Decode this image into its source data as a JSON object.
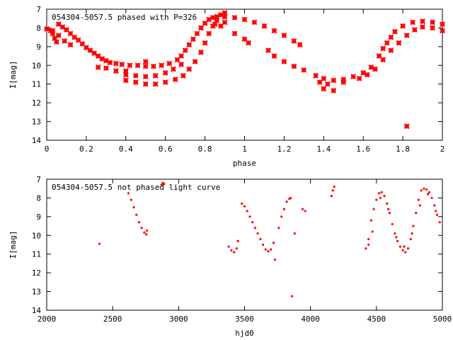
{
  "chart_data": [
    {
      "type": "scatter",
      "title": "054304-5057.5 phased with P=326",
      "xlabel": "phase",
      "ylabel": "I[mag]",
      "xlim": [
        0,
        2
      ],
      "ylim": [
        7,
        14
      ],
      "y_inverted": true,
      "x_ticks": [
        "0",
        "0.2",
        "0.4",
        "0.6",
        "0.8",
        "1",
        "1.2",
        "1.4",
        "1.6",
        "1.8",
        "2"
      ],
      "y_ticks": [
        "7",
        "8",
        "9",
        "10",
        "11",
        "12",
        "13",
        "14"
      ],
      "grid": false,
      "marker": "cross",
      "color": "#ff0000",
      "series": [
        {
          "points": [
            [
              0.0,
              8.05
            ],
            [
              0.02,
              8.15
            ],
            [
              0.03,
              8.3
            ],
            [
              0.04,
              8.55
            ],
            [
              0.05,
              8.75
            ],
            [
              0.06,
              7.8
            ],
            [
              0.08,
              7.95
            ],
            [
              0.1,
              8.1
            ],
            [
              0.12,
              8.3
            ],
            [
              0.14,
              8.5
            ],
            [
              0.16,
              8.65
            ],
            [
              0.18,
              8.85
            ],
            [
              0.2,
              9.05
            ],
            [
              0.22,
              9.2
            ],
            [
              0.24,
              9.35
            ],
            [
              0.26,
              9.5
            ],
            [
              0.28,
              9.65
            ],
            [
              0.3,
              9.75
            ],
            [
              0.32,
              9.85
            ],
            [
              0.35,
              9.9
            ],
            [
              0.38,
              9.95
            ],
            [
              0.42,
              10.0
            ],
            [
              0.46,
              10.0
            ],
            [
              0.5,
              10.05
            ],
            [
              0.54,
              10.05
            ],
            [
              0.58,
              10.0
            ],
            [
              0.62,
              9.9
            ],
            [
              0.66,
              9.7
            ],
            [
              0.68,
              9.5
            ],
            [
              0.7,
              9.2
            ],
            [
              0.72,
              8.9
            ],
            [
              0.74,
              8.6
            ],
            [
              0.76,
              8.3
            ],
            [
              0.78,
              8.0
            ],
            [
              0.8,
              7.75
            ],
            [
              0.82,
              7.55
            ],
            [
              0.84,
              7.45
            ],
            [
              0.86,
              7.4
            ],
            [
              0.9,
              7.4
            ],
            [
              0.95,
              7.45
            ],
            [
              1.0,
              7.55
            ],
            [
              1.05,
              7.7
            ],
            [
              1.1,
              7.9
            ],
            [
              1.15,
              8.15
            ],
            [
              1.2,
              8.4
            ],
            [
              1.25,
              8.7
            ],
            [
              1.28,
              8.9
            ],
            [
              0.03,
              8.15
            ],
            [
              0.06,
              8.4
            ],
            [
              0.09,
              8.7
            ],
            [
              0.12,
              8.9
            ],
            [
              0.26,
              10.1
            ],
            [
              0.3,
              10.15
            ],
            [
              0.35,
              10.3
            ],
            [
              0.4,
              10.5
            ],
            [
              0.45,
              10.55
            ],
            [
              0.5,
              10.6
            ],
            [
              0.55,
              10.55
            ],
            [
              0.6,
              10.4
            ],
            [
              0.64,
              10.2
            ],
            [
              0.68,
              9.95
            ],
            [
              0.4,
              10.8
            ],
            [
              0.45,
              10.9
            ],
            [
              0.5,
              11.0
            ],
            [
              0.55,
              11.0
            ],
            [
              0.6,
              10.9
            ],
            [
              0.65,
              10.75
            ],
            [
              0.69,
              10.55
            ],
            [
              0.72,
              10.2
            ],
            [
              0.75,
              9.8
            ],
            [
              0.78,
              9.3
            ],
            [
              0.8,
              8.8
            ],
            [
              0.82,
              8.3
            ],
            [
              0.84,
              7.9
            ],
            [
              0.86,
              7.6
            ],
            [
              0.88,
              7.3
            ],
            [
              0.9,
              7.2
            ],
            [
              0.85,
              7.8
            ],
            [
              0.88,
              7.9
            ],
            [
              0.9,
              7.7
            ],
            [
              0.95,
              8.3
            ],
            [
              1.0,
              8.6
            ],
            [
              1.02,
              8.8
            ],
            [
              1.12,
              9.2
            ],
            [
              1.15,
              9.5
            ],
            [
              1.2,
              9.8
            ],
            [
              1.25,
              10.05
            ],
            [
              1.3,
              10.25
            ],
            [
              1.36,
              10.55
            ],
            [
              1.4,
              10.7
            ],
            [
              1.45,
              10.8
            ],
            [
              1.5,
              10.75
            ],
            [
              1.55,
              10.6
            ],
            [
              1.6,
              10.4
            ],
            [
              1.64,
              10.1
            ],
            [
              1.68,
              9.5
            ],
            [
              1.7,
              9.1
            ],
            [
              1.72,
              8.8
            ],
            [
              1.74,
              8.5
            ],
            [
              1.76,
              8.2
            ],
            [
              1.8,
              7.9
            ],
            [
              1.85,
              7.7
            ],
            [
              1.9,
              7.65
            ],
            [
              1.95,
              7.7
            ],
            [
              2.0,
              7.8
            ],
            [
              1.38,
              10.9
            ],
            [
              1.42,
              11.0
            ],
            [
              1.5,
              10.9
            ],
            [
              1.58,
              10.7
            ],
            [
              1.62,
              10.5
            ],
            [
              1.66,
              10.2
            ],
            [
              1.7,
              9.7
            ],
            [
              1.74,
              9.2
            ],
            [
              1.78,
              8.8
            ],
            [
              1.82,
              8.4
            ],
            [
              1.86,
              8.1
            ],
            [
              1.9,
              7.95
            ],
            [
              1.95,
              8.0
            ],
            [
              2.0,
              8.15
            ],
            [
              1.4,
              11.25
            ],
            [
              1.45,
              11.35
            ],
            [
              1.82,
              13.25
            ],
            [
              0.4,
              10.3
            ],
            [
              0.5,
              9.8
            ]
          ]
        }
      ]
    },
    {
      "type": "scatter",
      "title": "054304-5057.5 not phased light curve",
      "xlabel": "hjd0",
      "ylabel": "I[mag]",
      "xlim": [
        2000,
        5000
      ],
      "ylim": [
        7,
        14
      ],
      "y_inverted": true,
      "x_ticks": [
        "2000",
        "2500",
        "3000",
        "3500",
        "4000",
        "4500",
        "5000"
      ],
      "y_ticks": [
        "7",
        "8",
        "9",
        "10",
        "11",
        "12",
        "13",
        "14"
      ],
      "grid": false,
      "marker": "dot",
      "color": "#ff0000",
      "series": [
        {
          "points": [
            [
              2400,
              10.45
            ],
            [
              2620,
              7.75
            ],
            [
              2640,
              8.1
            ],
            [
              2660,
              8.5
            ],
            [
              2680,
              8.9
            ],
            [
              2700,
              9.3
            ],
            [
              2720,
              9.6
            ],
            [
              2740,
              9.85
            ],
            [
              2755,
              9.95
            ],
            [
              2760,
              9.75
            ],
            [
              2870,
              7.3
            ],
            [
              2880,
              7.2
            ],
            [
              2890,
              7.25
            ],
            [
              3380,
              10.6
            ],
            [
              3400,
              10.8
            ],
            [
              3420,
              10.9
            ],
            [
              3440,
              10.7
            ],
            [
              3450,
              10.3
            ],
            [
              3480,
              8.3
            ],
            [
              3500,
              8.45
            ],
            [
              3520,
              8.7
            ],
            [
              3540,
              9.0
            ],
            [
              3560,
              9.3
            ],
            [
              3580,
              9.6
            ],
            [
              3600,
              9.9
            ],
            [
              3620,
              10.2
            ],
            [
              3640,
              10.5
            ],
            [
              3660,
              10.75
            ],
            [
              3680,
              10.85
            ],
            [
              3700,
              10.75
            ],
            [
              3720,
              10.4
            ],
            [
              3730,
              11.3
            ],
            [
              3760,
              9.6
            ],
            [
              3780,
              9.0
            ],
            [
              3800,
              8.6
            ],
            [
              3820,
              8.2
            ],
            [
              3840,
              8.05
            ],
            [
              3850,
              8.0
            ],
            [
              3860,
              13.25
            ],
            [
              3880,
              9.9
            ],
            [
              3940,
              8.6
            ],
            [
              3960,
              8.7
            ],
            [
              4160,
              7.9
            ],
            [
              4170,
              7.6
            ],
            [
              4180,
              7.4
            ],
            [
              4420,
              10.7
            ],
            [
              4440,
              10.2
            ],
            [
              4460,
              9.2
            ],
            [
              4480,
              8.6
            ],
            [
              4500,
              8.1
            ],
            [
              4520,
              7.75
            ],
            [
              4540,
              7.7
            ],
            [
              4560,
              7.9
            ],
            [
              4580,
              8.3
            ],
            [
              4600,
              8.8
            ],
            [
              4620,
              9.4
            ],
            [
              4640,
              9.9
            ],
            [
              4660,
              10.3
            ],
            [
              4680,
              10.6
            ],
            [
              4700,
              10.8
            ],
            [
              4720,
              10.9
            ],
            [
              4740,
              10.7
            ],
            [
              4760,
              10.2
            ],
            [
              4780,
              9.5
            ],
            [
              4800,
              8.8
            ],
            [
              4820,
              8.1
            ],
            [
              4840,
              7.6
            ],
            [
              4860,
              7.5
            ],
            [
              4880,
              7.55
            ],
            [
              4900,
              7.7
            ],
            [
              4920,
              8.0
            ],
            [
              4940,
              8.4
            ],
            [
              4960,
              8.9
            ],
            [
              4980,
              9.3
            ],
            [
              4440,
              10.5
            ],
            [
              4470,
              9.8
            ],
            [
              4530,
              8.0
            ],
            [
              4590,
              8.6
            ],
            [
              4650,
              10.1
            ],
            [
              4710,
              10.6
            ],
            [
              4770,
              9.9
            ],
            [
              4830,
              8.4
            ],
            [
              4890,
              7.8
            ],
            [
              4950,
              8.7
            ]
          ]
        }
      ]
    }
  ]
}
